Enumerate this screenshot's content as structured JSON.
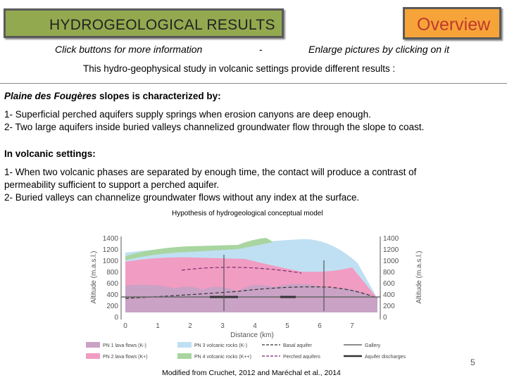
{
  "header": {
    "title": "HYDROGEOLOGICAL RESULTS",
    "overview_label": "Overview"
  },
  "hints": {
    "left": "Click buttons for more information",
    "separator": "-",
    "right": "Enlarge pictures by clicking on it"
  },
  "intro": "This hydro-geophysical study in volcanic settings provide different results :",
  "section1": {
    "title_italic": "Plaine des Fougères",
    "title_rest": " slopes is characterized by:",
    "line1": "1- Superficial perched aquifers supply springs when erosion canyons are deep enough.",
    "line2": "2- Two large aquifers inside buried valleys channelized groundwater flow through the slope to coast."
  },
  "section2": {
    "title": "In volcanic settings:",
    "line1a": "1- When two volcanic phases are separated by enough time, the contact will produce a contrast of",
    "line1b": "permeability sufficient to support a perched aquifer.",
    "line2": "2- Buried valleys can channelize groundwater flows without any index at the surface."
  },
  "figure": {
    "caption": "Hypothesis of hydrogeological conceptual model",
    "y_label_left": "Altitude (m.a.s.l.)",
    "y_label_right": "Altitude (m.a.s.l.)",
    "x_label": "Distance (km)",
    "y_ticks": [
      "1400",
      "1200",
      "1000",
      "800",
      "600",
      "400",
      "200",
      "0"
    ],
    "x_ticks": [
      "0",
      "1",
      "2",
      "3",
      "4",
      "5",
      "6",
      "7"
    ],
    "legend": {
      "pn1": "PN 1 lava flows (K-)",
      "pn2": "PN 2 lava flows (K+)",
      "pn3": "PN 3 volcanic rocks (K-)",
      "pn4": "PN 4 volcanic rocks (K++)",
      "basal": "Basal aquifer",
      "perched": "Perched aquifers",
      "gallery": "Gallery",
      "discharge": "Aquifer discharges"
    },
    "colors": {
      "pn1": "#c9a2c5",
      "pn2": "#f19cc2",
      "pn3": "#bfe0f2",
      "pn4": "#a8d5a0",
      "axis": "#555555"
    }
  },
  "credit": "Modified from Cruchet, 2012 and Maréchal et al., 2014",
  "page_number": "5"
}
